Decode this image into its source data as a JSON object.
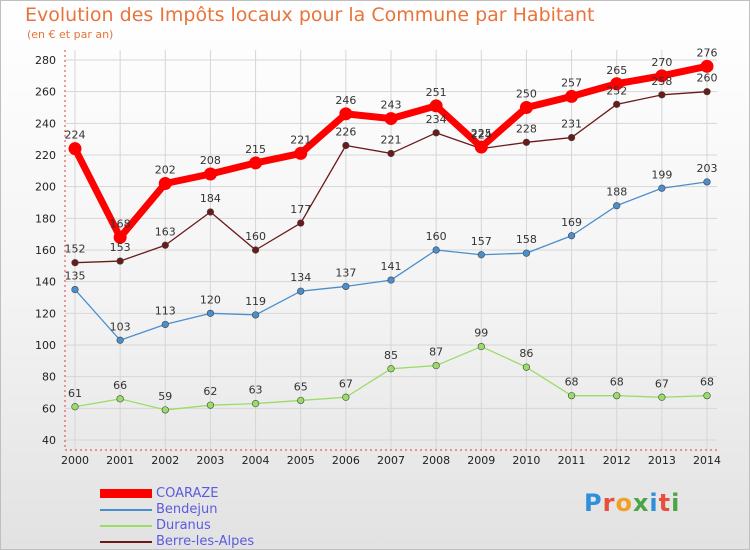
{
  "chart_data": {
    "type": "line",
    "title": "Evolution des Impôts locaux pour la Commune par Habitant",
    "subtitle": "(en € et par an)",
    "xlabel": "",
    "ylabel": "",
    "ylim": [
      40,
      280
    ],
    "yticks": [
      40,
      60,
      80,
      100,
      120,
      140,
      160,
      180,
      200,
      220,
      240,
      260,
      280
    ],
    "categories": [
      "2000",
      "2001",
      "2002",
      "2003",
      "2004",
      "2005",
      "2006",
      "2007",
      "2008",
      "2009",
      "2010",
      "2011",
      "2012",
      "2013",
      "2014"
    ],
    "grid": true,
    "legend_position": "bottom-left",
    "series": [
      {
        "name": "COARAZE",
        "color": "#ff0000",
        "values": [
          224,
          168,
          202,
          208,
          215,
          221,
          246,
          243,
          251,
          225,
          250,
          257,
          265,
          270,
          276
        ]
      },
      {
        "name": "Bendejun",
        "color": "#4a8fcc",
        "values": [
          135,
          103,
          113,
          120,
          119,
          134,
          137,
          141,
          160,
          157,
          158,
          169,
          188,
          199,
          203
        ]
      },
      {
        "name": "Duranus",
        "color": "#99dd66",
        "values": [
          61,
          66,
          59,
          62,
          63,
          65,
          67,
          85,
          87,
          99,
          86,
          68,
          68,
          67,
          68
        ]
      },
      {
        "name": "Berre-les-Alpes",
        "color": "#6b1a1a",
        "values": [
          152,
          153,
          163,
          184,
          160,
          177,
          226,
          221,
          234,
          224,
          228,
          231,
          252,
          258,
          260
        ]
      }
    ]
  },
  "logo": {
    "letters": [
      "P",
      "r",
      "o",
      "x",
      "i",
      "t",
      "i"
    ]
  }
}
